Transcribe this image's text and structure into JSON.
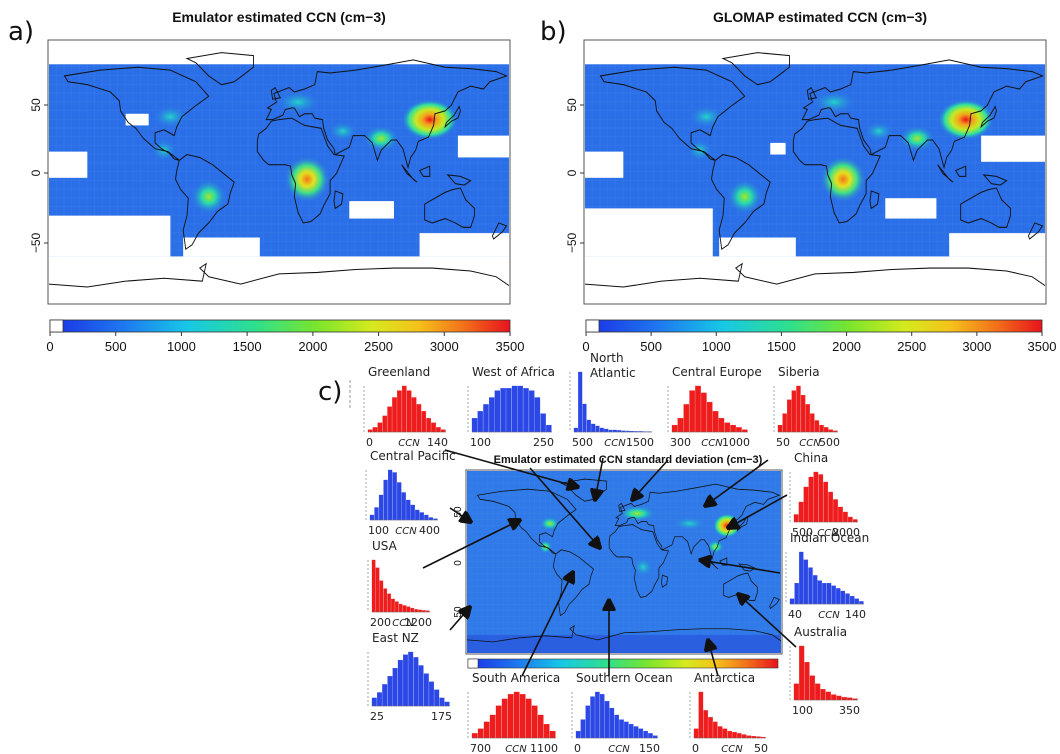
{
  "colors": {
    "ocean": "#2a6fe8",
    "hist_red": "#ee1c1c",
    "hist_blue": "#2b47e6",
    "coast": "#111111",
    "land_mask": "#ffffff"
  },
  "chart_data": [
    {
      "type": "heatmap",
      "panel": "a)",
      "title": "Emulator estimated CCN (cm−3)",
      "ylabel": "",
      "yticks": [
        "50",
        "0",
        "−50"
      ],
      "colorbar": {
        "ticks": [
          "0",
          "500",
          "1000",
          "1500",
          "2000",
          "2500",
          "3000",
          "3500"
        ],
        "range": [
          0,
          3500
        ]
      },
      "hotspots": [
        {
          "region": "East China",
          "lon": 118,
          "lat": 36,
          "value": 3400
        },
        {
          "region": "Central Africa",
          "lon": 22,
          "lat": -5,
          "value": 2500
        },
        {
          "region": "South America",
          "lon": -55,
          "lat": -17,
          "value": 1700
        },
        {
          "region": "Europe",
          "lon": 15,
          "lat": 48,
          "value": 1300
        },
        {
          "region": "India",
          "lon": 80,
          "lat": 23,
          "value": 1300
        }
      ]
    },
    {
      "type": "heatmap",
      "panel": "b)",
      "title": "GLOMAP estimated CCN (cm−3)",
      "ylabel": "",
      "yticks": [
        "50",
        "0",
        "−50"
      ],
      "colorbar": {
        "ticks": [
          "0",
          "500",
          "1000",
          "1500",
          "2000",
          "2500",
          "3000",
          "3500"
        ],
        "range": [
          0,
          3500
        ]
      },
      "hotspots": [
        {
          "region": "East China",
          "lon": 118,
          "lat": 36,
          "value": 3300
        },
        {
          "region": "Central Africa",
          "lon": 22,
          "lat": -5,
          "value": 2300
        },
        {
          "region": "South America",
          "lon": -55,
          "lat": -17,
          "value": 1500
        },
        {
          "region": "Europe",
          "lon": 15,
          "lat": 48,
          "value": 1200
        },
        {
          "region": "India",
          "lon": 80,
          "lat": 23,
          "value": 1200
        }
      ]
    },
    {
      "type": "heatmap",
      "panel": "c)",
      "title": "Emulator estimated CCN standard deviation (cm−3)",
      "yticks": [
        "50",
        "0",
        "50"
      ],
      "hotspots": [
        {
          "region": "East China",
          "lon": 118,
          "lat": 36,
          "value": 1.0
        },
        {
          "region": "Europe",
          "lon": 15,
          "lat": 48,
          "value": 0.6
        },
        {
          "region": "USA",
          "lon": -85,
          "lat": 38,
          "value": 0.5
        },
        {
          "region": "Central America",
          "lon": -90,
          "lat": 15,
          "value": 0.5
        },
        {
          "region": "Southeast Asia",
          "lon": 105,
          "lat": 15,
          "value": 0.5
        }
      ],
      "histograms": [
        {
          "name": "Greenland",
          "color": "red",
          "ticks": [
            "0",
            "140"
          ],
          "xlabel": "CCN",
          "values": [
            1,
            2,
            4,
            7,
            11,
            15,
            18,
            20,
            18,
            15,
            12,
            9,
            6,
            4,
            2,
            1
          ]
        },
        {
          "name": "West of Africa",
          "color": "blue",
          "ticks": [
            "100",
            "250"
          ],
          "xlabel": "",
          "values": [
            6,
            9,
            12,
            15,
            18,
            19,
            19,
            20,
            20,
            19,
            18,
            15,
            8,
            3
          ]
        },
        {
          "name": "North\nAtlantic",
          "color": "blue",
          "ticks": [
            "500",
            "1500"
          ],
          "xlabel": "CCN",
          "values": [
            2,
            30,
            14,
            6,
            4,
            3,
            2,
            1.5,
            1,
            1,
            0.8,
            0.6,
            0.5,
            0.4,
            0.3,
            0.3,
            0.2,
            0.2
          ]
        },
        {
          "name": "Central Europe",
          "color": "red",
          "ticks": [
            "300",
            "1000"
          ],
          "xlabel": "CCN",
          "values": [
            3,
            6,
            12,
            18,
            20,
            17,
            13,
            9,
            6,
            4,
            3,
            2,
            1
          ]
        },
        {
          "name": "Siberia",
          "color": "red",
          "ticks": [
            "50",
            "500"
          ],
          "xlabel": "CCN",
          "values": [
            3,
            8,
            14,
            18,
            20,
            16,
            12,
            8,
            5,
            3,
            2,
            1,
            0.5
          ]
        },
        {
          "name": "Central Pacific",
          "color": "blue",
          "ticks": [
            "100",
            "400"
          ],
          "xlabel": "CCN",
          "values": [
            2,
            5,
            10,
            16,
            20,
            19,
            15,
            11,
            8,
            6,
            4,
            3,
            2,
            1,
            0.5
          ]
        },
        {
          "name": "China",
          "color": "red",
          "ticks": [
            "500",
            "2000"
          ],
          "xlabel": "CCN",
          "values": [
            3,
            8,
            14,
            18,
            20,
            19,
            16,
            12,
            9,
            6,
            4,
            2,
            1
          ]
        },
        {
          "name": "USA",
          "color": "red",
          "ticks": [
            "200",
            "1200"
          ],
          "xlabel": "CCN",
          "values": [
            20,
            17,
            12,
            9,
            7,
            5,
            4,
            3,
            2.5,
            2,
            1.5,
            1,
            0.8,
            0.6,
            0.5
          ]
        },
        {
          "name": "Indian Ocean",
          "color": "blue",
          "ticks": [
            "40",
            "140"
          ],
          "xlabel": "CCN",
          "values": [
            2,
            8,
            20,
            17,
            14,
            11,
            9,
            8,
            8,
            7,
            6,
            5,
            4,
            3,
            2,
            1
          ]
        },
        {
          "name": "East NZ",
          "color": "blue",
          "ticks": [
            "25",
            "175"
          ],
          "xlabel": "",
          "values": [
            3,
            5,
            8,
            11,
            14,
            17,
            19,
            20,
            18,
            15,
            12,
            9,
            6,
            3,
            1.5
          ]
        },
        {
          "name": "Australia",
          "color": "red",
          "ticks": [
            "100",
            "350"
          ],
          "xlabel": "",
          "values": [
            6,
            20,
            14,
            9,
            6,
            4,
            3,
            2,
            1.5,
            1,
            0.8,
            0.5
          ]
        },
        {
          "name": "South America",
          "color": "red",
          "ticks": [
            "700",
            "1100"
          ],
          "xlabel": "CCN",
          "values": [
            2,
            4,
            7,
            10,
            14,
            17,
            19,
            20,
            19,
            17,
            14,
            10,
            6,
            3
          ]
        },
        {
          "name": "Southern Ocean",
          "color": "blue",
          "ticks": [
            "0",
            "150"
          ],
          "xlabel": "CCN",
          "values": [
            3,
            8,
            14,
            18,
            20,
            19,
            16,
            13,
            10,
            8,
            7,
            6,
            5,
            4,
            3,
            2,
            1
          ]
        },
        {
          "name": "Antarctica",
          "color": "red",
          "ticks": [
            "0",
            "50"
          ],
          "xlabel": "CCN",
          "values": [
            4,
            20,
            12,
            9,
            7,
            5,
            4,
            3,
            2.5,
            2,
            1.5,
            1,
            0.8,
            0.6,
            0.4
          ]
        }
      ]
    }
  ]
}
